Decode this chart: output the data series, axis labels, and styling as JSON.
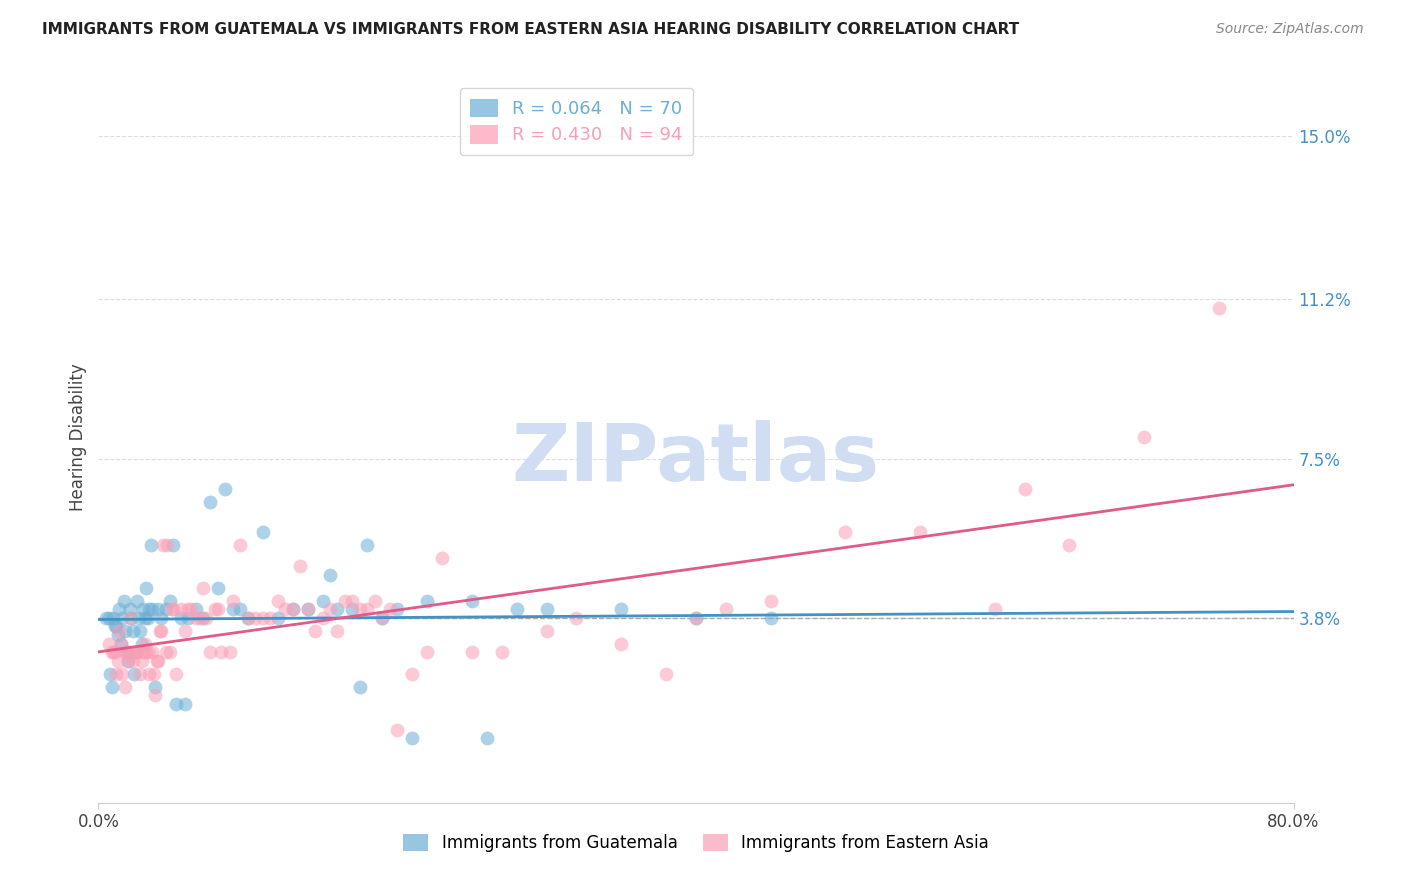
{
  "title": "IMMIGRANTS FROM GUATEMALA VS IMMIGRANTS FROM EASTERN ASIA HEARING DISABILITY CORRELATION CHART",
  "source": "Source: ZipAtlas.com",
  "ylabel_ticks": [
    0.038,
    0.075,
    0.112,
    0.15
  ],
  "ylabel_tick_labels": [
    "3.8%",
    "7.5%",
    "11.2%",
    "15.0%"
  ],
  "xlim": [
    0.0,
    0.8
  ],
  "ylim": [
    -0.005,
    0.165
  ],
  "legend_blue_r": "R = 0.064",
  "legend_blue_n": "N = 70",
  "legend_pink_r": "R = 0.430",
  "legend_pink_n": "N = 94",
  "legend_blue_color": "#6baed6",
  "legend_pink_color": "#fa9fb5",
  "scatter_blue_color": "#6baed6",
  "scatter_pink_color": "#fa9fb5",
  "trend_blue_color": "#4292c6",
  "trend_pink_color": "#e05a8a",
  "dashed_line_color": "#aaaaaa",
  "watermark": "ZIPatlas",
  "watermark_color": "#c8d8f0",
  "label_blue": "Immigrants from Guatemala",
  "label_pink": "Immigrants from Eastern Asia",
  "background_color": "#ffffff",
  "right_axis_color": "#4292c6",
  "blue_scatter_x": [
    0.005,
    0.007,
    0.008,
    0.009,
    0.01,
    0.011,
    0.012,
    0.013,
    0.014,
    0.015,
    0.016,
    0.017,
    0.018,
    0.019,
    0.02,
    0.021,
    0.022,
    0.023,
    0.024,
    0.025,
    0.026,
    0.027,
    0.028,
    0.029,
    0.03,
    0.031,
    0.032,
    0.033,
    0.034,
    0.035,
    0.036,
    0.038,
    0.04,
    0.042,
    0.045,
    0.048,
    0.05,
    0.052,
    0.055,
    0.058,
    0.06,
    0.065,
    0.07,
    0.075,
    0.08,
    0.085,
    0.09,
    0.095,
    0.1,
    0.11,
    0.12,
    0.13,
    0.14,
    0.15,
    0.155,
    0.16,
    0.17,
    0.175,
    0.18,
    0.19,
    0.2,
    0.21,
    0.22,
    0.25,
    0.26,
    0.28,
    0.3,
    0.35,
    0.4,
    0.45
  ],
  "blue_scatter_y": [
    0.038,
    0.038,
    0.025,
    0.022,
    0.038,
    0.036,
    0.036,
    0.034,
    0.04,
    0.032,
    0.038,
    0.042,
    0.035,
    0.03,
    0.028,
    0.04,
    0.038,
    0.035,
    0.025,
    0.03,
    0.042,
    0.038,
    0.035,
    0.032,
    0.04,
    0.038,
    0.045,
    0.038,
    0.04,
    0.055,
    0.04,
    0.022,
    0.04,
    0.038,
    0.04,
    0.042,
    0.055,
    0.018,
    0.038,
    0.018,
    0.038,
    0.04,
    0.038,
    0.065,
    0.045,
    0.068,
    0.04,
    0.04,
    0.038,
    0.058,
    0.038,
    0.04,
    0.04,
    0.042,
    0.048,
    0.04,
    0.04,
    0.022,
    0.055,
    0.038,
    0.04,
    0.01,
    0.042,
    0.042,
    0.01,
    0.04,
    0.04,
    0.04,
    0.038,
    0.038
  ],
  "pink_scatter_x": [
    0.007,
    0.009,
    0.01,
    0.011,
    0.012,
    0.013,
    0.014,
    0.015,
    0.016,
    0.017,
    0.018,
    0.019,
    0.02,
    0.021,
    0.022,
    0.023,
    0.025,
    0.026,
    0.028,
    0.029,
    0.03,
    0.031,
    0.032,
    0.033,
    0.034,
    0.036,
    0.037,
    0.038,
    0.039,
    0.04,
    0.041,
    0.042,
    0.043,
    0.045,
    0.046,
    0.048,
    0.049,
    0.05,
    0.052,
    0.055,
    0.058,
    0.06,
    0.062,
    0.065,
    0.068,
    0.07,
    0.072,
    0.075,
    0.078,
    0.08,
    0.082,
    0.088,
    0.09,
    0.095,
    0.1,
    0.105,
    0.11,
    0.115,
    0.12,
    0.125,
    0.13,
    0.135,
    0.14,
    0.145,
    0.15,
    0.155,
    0.16,
    0.165,
    0.17,
    0.175,
    0.18,
    0.185,
    0.19,
    0.195,
    0.2,
    0.21,
    0.22,
    0.23,
    0.25,
    0.27,
    0.3,
    0.32,
    0.35,
    0.38,
    0.4,
    0.42,
    0.45,
    0.5,
    0.55,
    0.6,
    0.62,
    0.65,
    0.7,
    0.75
  ],
  "pink_scatter_y": [
    0.032,
    0.03,
    0.03,
    0.03,
    0.025,
    0.028,
    0.035,
    0.032,
    0.025,
    0.03,
    0.022,
    0.03,
    0.028,
    0.03,
    0.038,
    0.028,
    0.03,
    0.03,
    0.025,
    0.028,
    0.03,
    0.032,
    0.03,
    0.03,
    0.025,
    0.03,
    0.025,
    0.02,
    0.028,
    0.028,
    0.035,
    0.035,
    0.055,
    0.03,
    0.055,
    0.03,
    0.04,
    0.04,
    0.025,
    0.04,
    0.035,
    0.04,
    0.04,
    0.038,
    0.038,
    0.045,
    0.038,
    0.03,
    0.04,
    0.04,
    0.03,
    0.03,
    0.042,
    0.055,
    0.038,
    0.038,
    0.038,
    0.038,
    0.042,
    0.04,
    0.04,
    0.05,
    0.04,
    0.035,
    0.038,
    0.04,
    0.035,
    0.042,
    0.042,
    0.04,
    0.04,
    0.042,
    0.038,
    0.04,
    0.012,
    0.025,
    0.03,
    0.052,
    0.03,
    0.03,
    0.035,
    0.038,
    0.032,
    0.025,
    0.038,
    0.04,
    0.042,
    0.058,
    0.058,
    0.04,
    0.068,
    0.055,
    0.08,
    0.11
  ]
}
